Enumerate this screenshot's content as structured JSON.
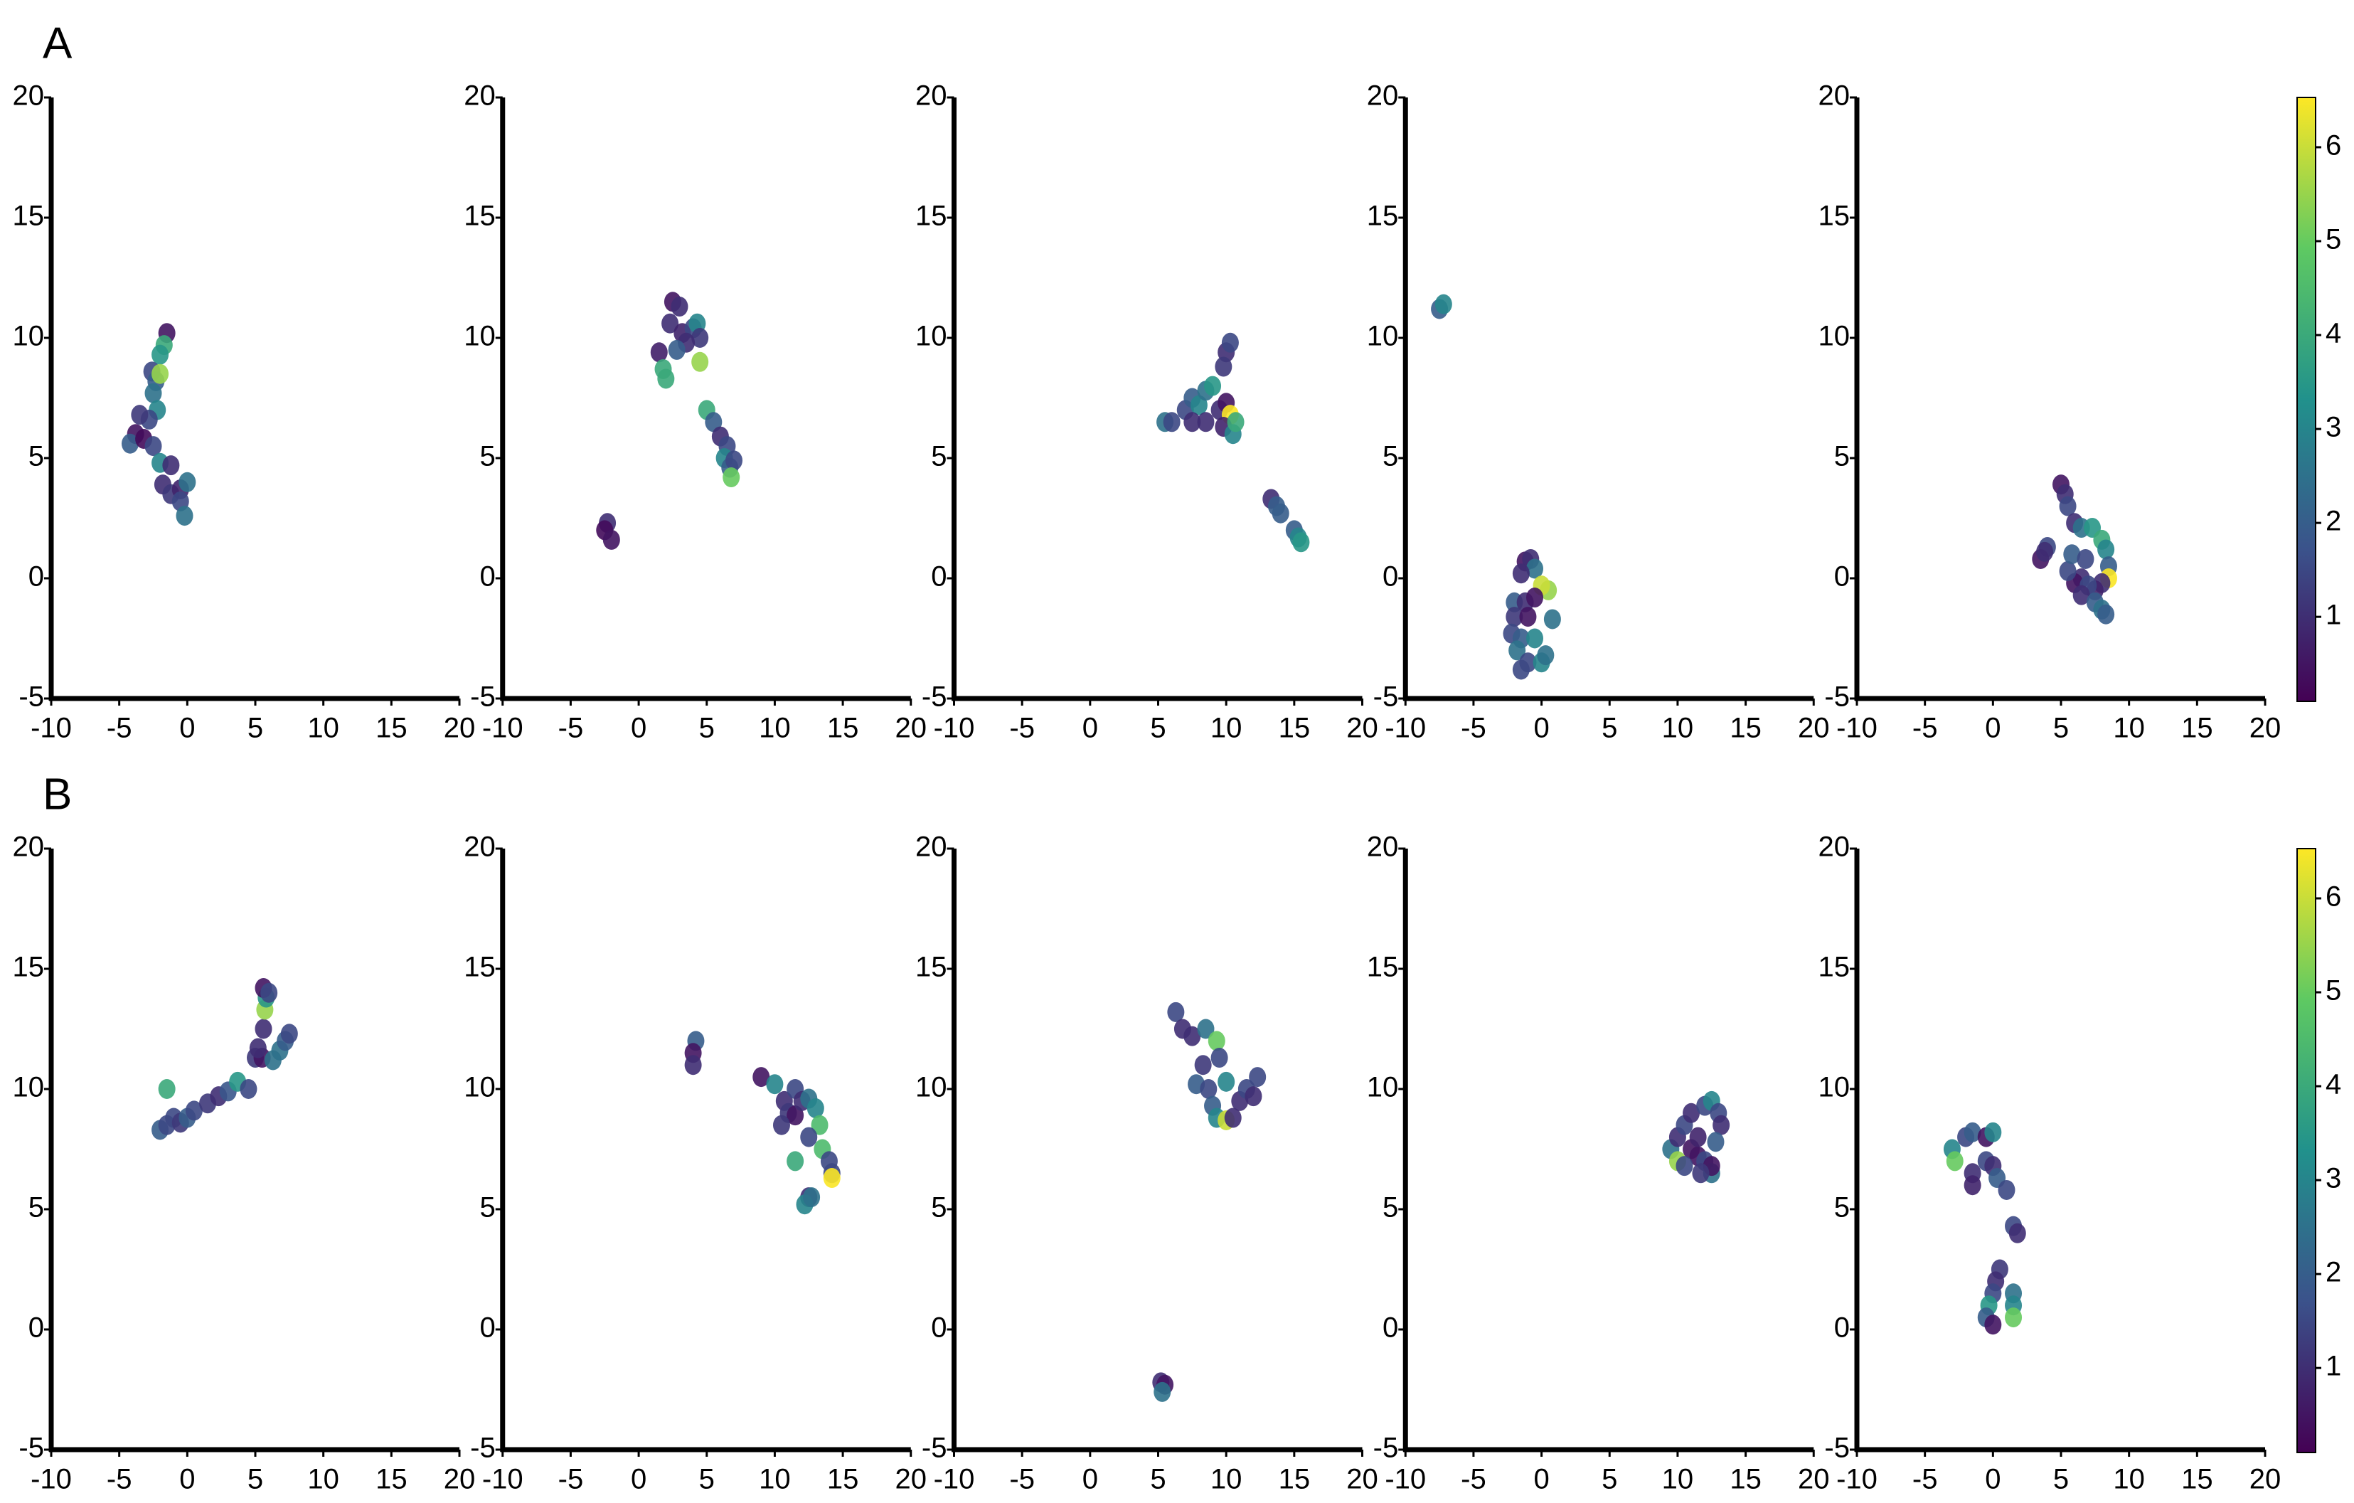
{
  "chart_data": [
    {
      "type": "scatter",
      "panel_label": "A",
      "colormap": "viridis",
      "xlim": [
        -10,
        20
      ],
      "ylim": [
        -5,
        20
      ],
      "xticks": [
        -10,
        -5,
        0,
        5,
        10,
        15,
        20
      ],
      "yticks": [
        -5,
        0,
        5,
        10,
        15,
        20
      ],
      "x": [
        -1.5,
        -1.7,
        -2,
        -2.6,
        -2.3,
        -2.5,
        -2.2,
        -2.8,
        -3.5,
        -3.8,
        -4.2,
        -3.2,
        -2.5,
        -2,
        -1.2,
        -1.8,
        -1.2,
        -0.5,
        0,
        -0.5,
        -0.2,
        -2
      ],
      "y": [
        10.2,
        9.7,
        9.3,
        8.6,
        8.2,
        7.7,
        7,
        6.6,
        6.8,
        6,
        5.6,
        5.8,
        5.5,
        4.8,
        4.7,
        3.9,
        3.5,
        3.7,
        4,
        3.2,
        2.6,
        8.5
      ],
      "c": [
        0.5,
        4,
        3.5,
        1.5,
        2,
        2.5,
        3,
        1.5,
        1.2,
        0.5,
        2,
        0.3,
        1.5,
        3,
        1,
        1,
        1.2,
        0.8,
        2.5,
        1.5,
        2.5,
        5.5
      ]
    },
    {
      "type": "scatter",
      "colormap": "viridis",
      "xlim": [
        -10,
        20
      ],
      "ylim": [
        -5,
        20
      ],
      "xticks": [
        -10,
        -5,
        0,
        5,
        10,
        15,
        20
      ],
      "yticks": [
        -5,
        0,
        5,
        10,
        15,
        20
      ],
      "x": [
        2.5,
        3,
        2.3,
        3.2,
        4,
        4.3,
        4.5,
        3.5,
        2.8,
        1.5,
        1.8,
        2,
        4.5,
        5,
        5.5,
        6,
        6.5,
        6.3,
        6.7,
        7,
        6.8,
        -2.3,
        -2.5,
        -2
      ],
      "y": [
        11.5,
        11.3,
        10.6,
        10.2,
        10.4,
        10.6,
        10,
        9.8,
        9.5,
        9.4,
        8.7,
        8.3,
        9,
        7,
        6.5,
        5.9,
        5.5,
        5,
        4.6,
        4.9,
        4.2,
        2.3,
        2,
        1.6
      ],
      "c": [
        0.5,
        1,
        1,
        0.8,
        1.5,
        3,
        1.2,
        1,
        2,
        0.7,
        4,
        4,
        5.5,
        4,
        2,
        1,
        1.5,
        3,
        2,
        1.5,
        5,
        1,
        0.3,
        0.5
      ]
    },
    {
      "type": "scatter",
      "colormap": "viridis",
      "xlim": [
        -10,
        20
      ],
      "ylim": [
        -5,
        20
      ],
      "xticks": [
        -10,
        -5,
        0,
        5,
        10,
        15,
        20
      ],
      "yticks": [
        -5,
        0,
        5,
        10,
        15,
        20
      ],
      "x": [
        5.5,
        6,
        7,
        7.5,
        8,
        8.5,
        9,
        7.5,
        8.5,
        9.5,
        10,
        10.3,
        9.8,
        10.5,
        10.7,
        10,
        10.3,
        9.8,
        13.3,
        13.7,
        14,
        15,
        15.3,
        15.5
      ],
      "y": [
        6.5,
        6.5,
        7,
        7.5,
        7.2,
        7.8,
        8,
        6.5,
        6.5,
        7,
        7.3,
        6.8,
        6.3,
        6,
        6.5,
        9.4,
        9.8,
        8.8,
        3.3,
        3,
        2.7,
        2,
        1.7,
        1.5
      ],
      "c": [
        2.5,
        1.5,
        1.5,
        2,
        3,
        2.5,
        3.5,
        1,
        1,
        1,
        0.5,
        6.5,
        0.8,
        3,
        4,
        1,
        1.5,
        1.2,
        1,
        2,
        2,
        2,
        3,
        3.5
      ]
    },
    {
      "type": "scatter",
      "colormap": "viridis",
      "xlim": [
        -10,
        20
      ],
      "ylim": [
        -5,
        20
      ],
      "xticks": [
        -10,
        -5,
        0,
        5,
        10,
        15,
        20
      ],
      "yticks": [
        -5,
        0,
        5,
        10,
        15,
        20
      ],
      "x": [
        -7.5,
        -7.2,
        -1.2,
        -0.8,
        -0.5,
        -1.5,
        0.5,
        0,
        -2,
        -1.2,
        -0.5,
        -2,
        -1,
        -2.2,
        -1.5,
        -0.5,
        0.8,
        -1.8,
        -1,
        0,
        -1.5,
        0.3
      ],
      "y": [
        11.2,
        11.4,
        0.7,
        0.8,
        0.4,
        0.2,
        -0.5,
        -0.3,
        -1,
        -1,
        -0.8,
        -1.6,
        -1.6,
        -2.3,
        -2.5,
        -2.5,
        -1.7,
        -3,
        -3.5,
        -3.5,
        -3.8,
        -3.2
      ],
      "c": [
        2,
        3,
        0.5,
        1,
        2.5,
        1,
        5.5,
        6,
        2,
        1,
        0.5,
        1.2,
        0.5,
        1.5,
        2,
        3,
        2.5,
        2.5,
        1.5,
        3,
        1.5,
        2.5
      ]
    },
    {
      "type": "scatter",
      "colormap": "viridis",
      "xlim": [
        -10,
        20
      ],
      "ylim": [
        -5,
        20
      ],
      "xticks": [
        -10,
        -5,
        0,
        5,
        10,
        15,
        20
      ],
      "yticks": [
        -5,
        0,
        5,
        10,
        15,
        20
      ],
      "colorbar": {
        "clim": [
          0.1,
          6.53
        ],
        "ticks": [
          1,
          2,
          3,
          4,
          5,
          6
        ]
      },
      "x": [
        5,
        5.3,
        5.5,
        6,
        6.5,
        7.3,
        8,
        8.3,
        8.5,
        8.5,
        8,
        7.5,
        6.5,
        6,
        5.5,
        5.8,
        6.8,
        7,
        6.5,
        7.5,
        8,
        8.3,
        4,
        3.5,
        3.8
      ],
      "y": [
        3.9,
        3.5,
        3,
        2.3,
        2.1,
        2.1,
        1.6,
        1.2,
        0.5,
        0,
        -0.2,
        -0.5,
        0,
        -0.2,
        0.3,
        1,
        0.8,
        -0.3,
        -0.7,
        -1,
        -1.3,
        -1.5,
        1.3,
        0.8,
        1.1
      ],
      "c": [
        0.5,
        1,
        1.5,
        1,
        2.5,
        3.5,
        4,
        3,
        2,
        6.5,
        1,
        0.8,
        1,
        0.5,
        1.5,
        2,
        1.5,
        1.5,
        1,
        2,
        2.5,
        2,
        1.5,
        0.5,
        1
      ]
    },
    {
      "type": "scatter",
      "panel_label": "B",
      "colormap": "viridis",
      "xlim": [
        -10,
        20
      ],
      "ylim": [
        -5,
        20
      ],
      "xticks": [
        -10,
        -5,
        0,
        5,
        10,
        15,
        20
      ],
      "yticks": [
        -5,
        0,
        5,
        10,
        15,
        20
      ],
      "x": [
        -2,
        -1.5,
        -1,
        -0.5,
        -1.5,
        0,
        0.5,
        1.5,
        2.3,
        3,
        3.7,
        4.5,
        5,
        5.5,
        5.2,
        5.6,
        5.7,
        5.8,
        5.6,
        6,
        6.3,
        6.8,
        7.2,
        7.5
      ],
      "y": [
        8.3,
        8.5,
        8.8,
        8.6,
        10,
        8.8,
        9.1,
        9.4,
        9.7,
        9.9,
        10.3,
        10,
        11.3,
        11.3,
        11.7,
        12.5,
        13.3,
        13.8,
        14.2,
        14,
        11.2,
        11.6,
        12,
        12.3
      ],
      "c": [
        2,
        1.5,
        1.5,
        1.2,
        4,
        2,
        1.5,
        1.2,
        1,
        1.8,
        3.5,
        1.5,
        1.2,
        0.5,
        1,
        1,
        5.5,
        3.5,
        0.5,
        1.5,
        2.5,
        2.5,
        2,
        1.5
      ]
    },
    {
      "type": "scatter",
      "colormap": "viridis",
      "xlim": [
        -10,
        20
      ],
      "ylim": [
        -5,
        20
      ],
      "xticks": [
        -10,
        -5,
        0,
        5,
        10,
        15,
        20
      ],
      "yticks": [
        -5,
        0,
        5,
        10,
        15,
        20
      ],
      "x": [
        4.2,
        4,
        4,
        9,
        10,
        10.7,
        11.5,
        11,
        11.5,
        12,
        12.5,
        13,
        13.3,
        12.5,
        11.5,
        13.5,
        14,
        14.2,
        14.2,
        12.5,
        12.2,
        12.7,
        10.5
      ],
      "y": [
        12,
        11.5,
        11,
        10.5,
        10.2,
        9.5,
        10,
        9,
        8.9,
        9.5,
        9.6,
        9.2,
        8.5,
        8,
        7,
        7.5,
        7,
        6.5,
        6.3,
        5.5,
        5.2,
        5.5,
        8.5
      ],
      "c": [
        2,
        0.5,
        1,
        0.5,
        3,
        1,
        1.5,
        1.2,
        0.5,
        1,
        2.5,
        3,
        4.5,
        1.5,
        4,
        4.5,
        1.5,
        1.5,
        6.5,
        1,
        3,
        2.5,
        1.2
      ]
    },
    {
      "type": "scatter",
      "colormap": "viridis",
      "xlim": [
        -10,
        20
      ],
      "ylim": [
        -5,
        20
      ],
      "xticks": [
        -10,
        -5,
        0,
        5,
        10,
        15,
        20
      ],
      "yticks": [
        -5,
        0,
        5,
        10,
        15,
        20
      ],
      "x": [
        6.3,
        6.8,
        7.5,
        8.5,
        9.3,
        9.5,
        8.3,
        7.8,
        8.7,
        9,
        9.3,
        10,
        10.5,
        10,
        11,
        11.5,
        12.3,
        12,
        5.2,
        5.5,
        5.3
      ],
      "y": [
        13.2,
        12.5,
        12.2,
        12.5,
        12,
        11.3,
        11,
        10.2,
        10,
        9.3,
        8.8,
        8.7,
        8.8,
        10.3,
        9.5,
        10,
        10.5,
        9.7,
        -2.2,
        -2.3,
        -2.6
      ],
      "c": [
        1.5,
        1,
        1,
        2.5,
        5,
        1.5,
        1.2,
        2,
        1.5,
        2,
        3,
        6,
        1,
        3,
        1,
        1.5,
        1.5,
        1,
        1,
        0.5,
        2.5
      ]
    },
    {
      "type": "scatter",
      "colormap": "viridis",
      "xlim": [
        -10,
        20
      ],
      "ylim": [
        -5,
        20
      ],
      "xticks": [
        -10,
        -5,
        0,
        5,
        10,
        15,
        20
      ],
      "yticks": [
        -5,
        0,
        5,
        10,
        15,
        20
      ],
      "x": [
        9.5,
        10,
        10,
        10.5,
        11,
        11,
        11.5,
        11.5,
        12,
        12.5,
        13,
        13.2,
        12,
        12.5,
        12.8,
        10.5,
        12.5,
        11.7
      ],
      "y": [
        7.5,
        8,
        7,
        8.5,
        9,
        7.5,
        7.2,
        8,
        9.3,
        9.5,
        9,
        8.5,
        7,
        6.5,
        7.8,
        6.8,
        6.8,
        6.5
      ],
      "c": [
        2.5,
        1,
        5.5,
        1.5,
        1,
        0.5,
        0.5,
        0.8,
        1.5,
        3,
        1.5,
        1,
        1.5,
        2.5,
        2,
        1.5,
        0.5,
        1.2
      ]
    },
    {
      "type": "scatter",
      "colormap": "viridis",
      "xlim": [
        -10,
        20
      ],
      "ylim": [
        -5,
        20
      ],
      "xticks": [
        -10,
        -5,
        0,
        5,
        10,
        15,
        20
      ],
      "yticks": [
        -5,
        0,
        5,
        10,
        15,
        20
      ],
      "colorbar": {
        "clim": [
          0.1,
          6.53
        ],
        "ticks": [
          1,
          2,
          3,
          4,
          5,
          6
        ]
      },
      "x": [
        -3,
        -2.8,
        -2,
        -1.5,
        -0.5,
        0,
        -1.5,
        -1.5,
        -0.5,
        0,
        0.3,
        1,
        1.5,
        1.8,
        0.5,
        0.2,
        0,
        -0.3,
        -0.5,
        0,
        1.5,
        1.5,
        1.5
      ],
      "y": [
        7.5,
        7,
        8,
        8.2,
        8,
        8.2,
        6.5,
        6,
        7,
        6.8,
        6.3,
        5.8,
        4.3,
        4,
        2.5,
        2,
        1.5,
        1,
        0.5,
        0.2,
        1.5,
        1,
        0.5
      ],
      "c": [
        3,
        5,
        1.5,
        2,
        0.5,
        3,
        1,
        0.8,
        1.5,
        1,
        2,
        1.5,
        1.5,
        1,
        1.2,
        1,
        1.5,
        3.5,
        2,
        0.5,
        2.5,
        3,
        5
      ]
    }
  ]
}
